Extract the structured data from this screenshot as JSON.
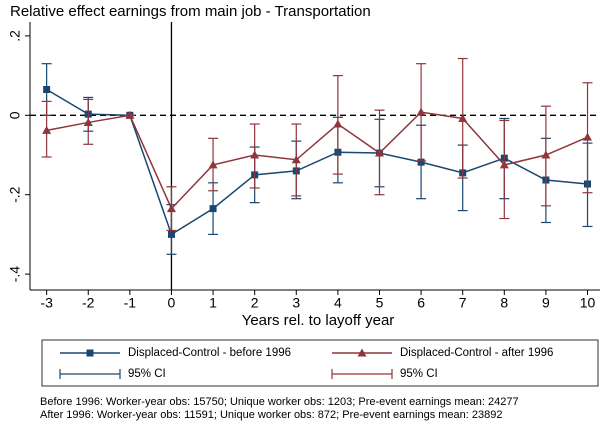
{
  "chart_data": {
    "type": "line",
    "title": "Relative effect earnings from main job - Transportation",
    "x_label": "Years rel. to layoff year",
    "x": [
      -3,
      -2,
      -1,
      0,
      1,
      2,
      3,
      4,
      5,
      6,
      7,
      8,
      9,
      10
    ],
    "series": [
      {
        "name": "Displaced-Control - before 1996",
        "ci_name": "95% CI",
        "color": "#1a476f",
        "marker": "square",
        "values": [
          0.065,
          0.003,
          0,
          -0.3,
          -0.235,
          -0.15,
          -0.14,
          -0.093,
          -0.095,
          -0.118,
          -0.145,
          -0.108,
          -0.163,
          -0.173
        ],
        "ci_low": [
          0,
          -0.04,
          0,
          -0.35,
          -0.3,
          -0.22,
          -0.21,
          -0.17,
          -0.18,
          -0.21,
          -0.24,
          -0.21,
          -0.27,
          -0.28
        ],
        "ci_high": [
          0.13,
          0.045,
          0,
          -0.225,
          -0.17,
          -0.08,
          -0.065,
          -0.005,
          -0.01,
          -0.025,
          -0.075,
          -0.008,
          -0.058,
          -0.07
        ]
      },
      {
        "name": "Displaced-Control - after 1996",
        "ci_name": "95% CI",
        "color": "#90353b",
        "marker": "triangle",
        "values": [
          -0.038,
          -0.018,
          0,
          -0.235,
          -0.125,
          -0.1,
          -0.112,
          -0.022,
          -0.095,
          0.008,
          -0.008,
          -0.125,
          -0.1,
          -0.055
        ],
        "ci_low": [
          -0.105,
          -0.073,
          0,
          -0.29,
          -0.19,
          -0.183,
          -0.203,
          -0.148,
          -0.2,
          -0.115,
          -0.158,
          -0.26,
          -0.228,
          -0.195
        ],
        "ci_high": [
          0.035,
          0.04,
          0,
          -0.18,
          -0.058,
          -0.022,
          -0.022,
          0.1,
          0.013,
          0.13,
          0.143,
          -0.013,
          0.023,
          0.082
        ]
      }
    ],
    "xlim": [
      -3.4,
      10.3
    ],
    "ylim": [
      -0.44,
      0.235
    ],
    "xticks": [
      -3,
      -2,
      -1,
      0,
      1,
      2,
      3,
      4,
      5,
      6,
      7,
      8,
      9,
      10
    ],
    "yticks": [
      {
        "value": 0.2,
        "label": ".2"
      },
      0,
      {
        "value": -0.2,
        "label": "-.2"
      },
      {
        "value": -0.4,
        "label": "-.4"
      }
    ],
    "xline": 0,
    "yline": 0,
    "notes": [
      "Before 1996: Worker-year obs: 15750; Unique worker obs: 1203; Pre-event earnings mean: 24277",
      "After 1996: Worker-year obs: 11591; Unique worker obs: 872; Pre-event earnings mean: 23892"
    ]
  }
}
